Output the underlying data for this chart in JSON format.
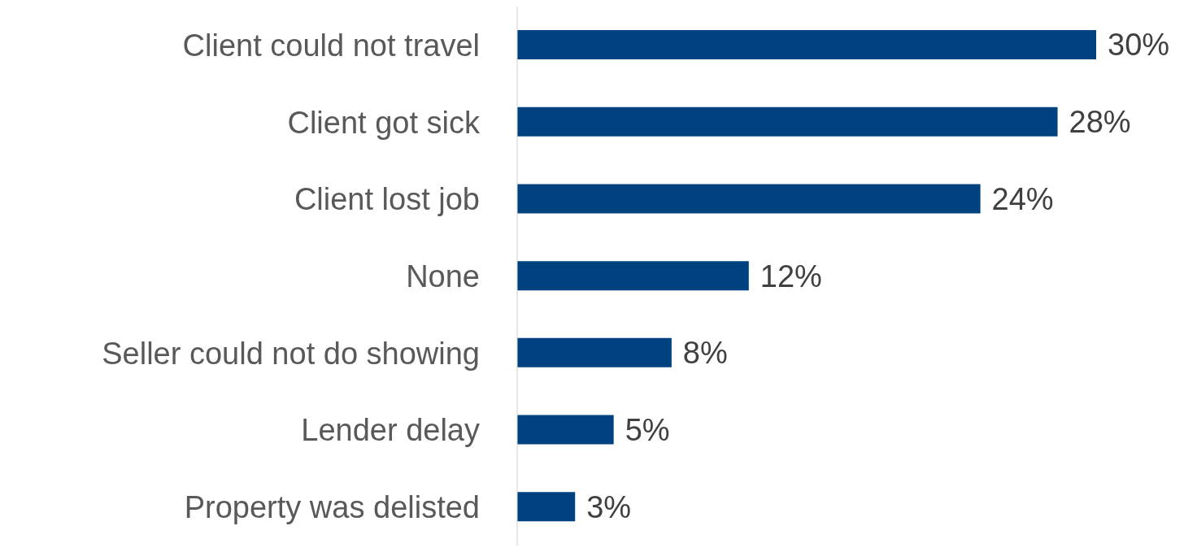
{
  "chart_data": {
    "type": "bar",
    "orientation": "horizontal",
    "categories": [
      "Client could not travel",
      "Client got sick",
      "Client lost job",
      "None",
      "Seller could not do showing",
      "Lender delay",
      "Property was delisted"
    ],
    "values": [
      30,
      28,
      24,
      12,
      8,
      5,
      3
    ],
    "value_labels": [
      "30%",
      "28%",
      "24%",
      "12%",
      "8%",
      "5%",
      "3%"
    ],
    "color": "#00427f",
    "grid": false,
    "legend": false
  }
}
